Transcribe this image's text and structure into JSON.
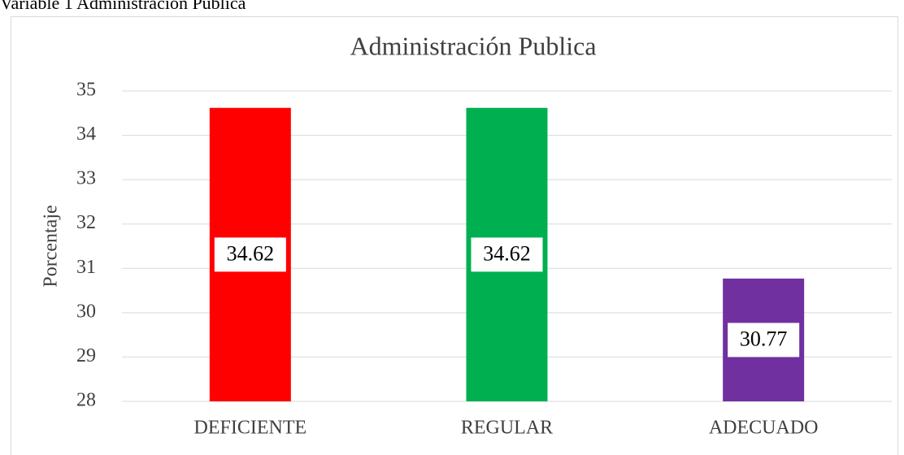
{
  "chart_data": {
    "type": "bar",
    "caption": "Variable 1 Administración Publica",
    "title": "Administración Publica",
    "ylabel": "Porcentaje",
    "categories": [
      "DEFICIENTE",
      "REGULAR",
      "ADECUADO"
    ],
    "values": [
      34.62,
      34.62,
      30.77
    ],
    "colors": [
      "#ff0000",
      "#00b050",
      "#7030a0"
    ],
    "ylim": [
      28,
      35
    ],
    "yticks": [
      28,
      29,
      30,
      31,
      32,
      33,
      34,
      35
    ],
    "grid": true
  }
}
